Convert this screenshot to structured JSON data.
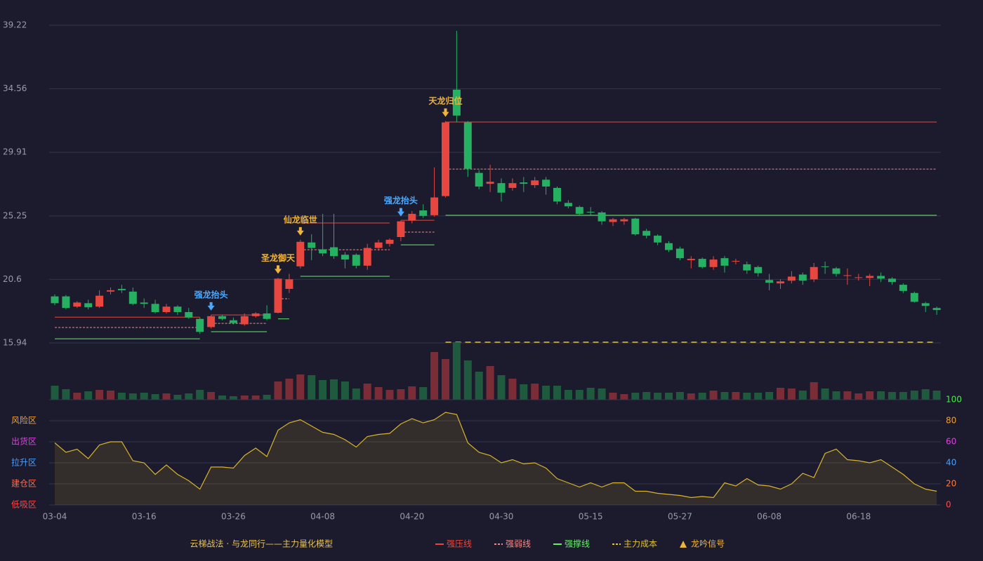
{
  "chart_data": [
    {
      "type": "candlestick",
      "up_color": "#e8473f",
      "down_color": "#26b062",
      "ylim": [
        15.94,
        39.22
      ],
      "yticks": [
        15.94,
        20.6,
        25.25,
        29.91,
        34.56,
        39.22
      ],
      "grid": true,
      "open": [
        19.35,
        19.35,
        18.6,
        18.85,
        18.6,
        19.7,
        19.9,
        19.7,
        18.9,
        18.8,
        18.2,
        18.6,
        18.2,
        17.7,
        17.1,
        17.9,
        17.6,
        17.3,
        17.9,
        18.1,
        18.15,
        19.9,
        21.55,
        23.3,
        22.8,
        22.95,
        22.4,
        22.4,
        21.6,
        22.9,
        23.2,
        23.7,
        24.9,
        25.65,
        25.3,
        26.7,
        34.5,
        32.1,
        28.4,
        27.6,
        27.65,
        27.3,
        27.7,
        27.5,
        27.9,
        27.3,
        26.2,
        25.9,
        25.55,
        25.5,
        24.8,
        24.85,
        25.05,
        24.15,
        23.8,
        23.25,
        22.85,
        22.0,
        22.1,
        21.5,
        22.15,
        21.9,
        21.7,
        21.5,
        20.55,
        20.3,
        20.5,
        20.95,
        20.6,
        21.55,
        21.4,
        20.85,
        20.7,
        20.7,
        20.85,
        20.65,
        20.2,
        19.6,
        18.85,
        18.5
      ],
      "high": [
        19.5,
        19.45,
        19.0,
        19.1,
        19.8,
        20.0,
        20.2,
        20.0,
        19.2,
        19.1,
        18.8,
        18.7,
        18.5,
        17.8,
        18.0,
        18.0,
        17.8,
        18.1,
        18.2,
        18.7,
        20.7,
        21.0,
        23.5,
        23.9,
        25.4,
        25.4,
        22.6,
        22.5,
        23.2,
        23.5,
        23.6,
        24.9,
        25.6,
        26.1,
        28.8,
        32.2,
        38.8,
        32.2,
        28.6,
        29.0,
        28.0,
        28.0,
        28.1,
        28.1,
        28.1,
        27.4,
        26.4,
        26.0,
        25.9,
        25.6,
        25.1,
        25.1,
        25.1,
        24.3,
        23.9,
        23.4,
        23.0,
        22.3,
        22.2,
        22.3,
        22.3,
        22.1,
        21.9,
        21.6,
        21.0,
        20.6,
        21.2,
        21.1,
        21.8,
        21.9,
        21.5,
        21.4,
        21.0,
        21.0,
        21.1,
        20.75,
        20.3,
        19.7,
        18.95,
        18.6
      ],
      "low": [
        18.7,
        18.4,
        18.5,
        18.4,
        18.5,
        19.5,
        19.6,
        18.7,
        18.5,
        18.1,
        18.1,
        18.0,
        17.7,
        16.6,
        17.0,
        17.6,
        17.3,
        17.2,
        17.8,
        17.6,
        18.1,
        19.6,
        21.4,
        22.0,
        22.3,
        22.1,
        21.4,
        21.4,
        21.3,
        22.7,
        23.0,
        23.4,
        24.7,
        25.1,
        25.2,
        26.6,
        32.1,
        28.1,
        27.2,
        27.0,
        26.3,
        27.1,
        27.0,
        27.3,
        26.8,
        26.1,
        25.8,
        25.3,
        25.3,
        24.6,
        24.5,
        24.6,
        23.8,
        23.6,
        23.1,
        22.6,
        22.0,
        21.4,
        21.4,
        21.3,
        21.1,
        21.7,
        21.0,
        20.8,
        19.8,
        19.9,
        20.3,
        20.2,
        20.4,
        21.0,
        20.8,
        20.2,
        20.5,
        20.1,
        20.4,
        20.2,
        19.6,
        18.9,
        18.2,
        18.0
      ],
      "close": [
        18.85,
        18.5,
        18.9,
        18.55,
        19.4,
        19.8,
        19.8,
        18.8,
        18.8,
        18.2,
        18.6,
        18.2,
        17.8,
        16.75,
        17.9,
        17.7,
        17.4,
        17.9,
        18.1,
        17.7,
        20.65,
        20.6,
        23.35,
        22.9,
        22.5,
        22.3,
        22.05,
        21.6,
        22.9,
        23.3,
        23.5,
        24.85,
        25.4,
        25.25,
        26.6,
        32.1,
        32.6,
        28.7,
        27.4,
        27.75,
        26.95,
        27.65,
        27.6,
        27.85,
        27.4,
        26.3,
        25.95,
        25.4,
        25.5,
        24.85,
        25.0,
        25.0,
        23.9,
        23.8,
        23.3,
        22.75,
        22.15,
        22.1,
        21.5,
        22.05,
        21.6,
        21.95,
        21.25,
        21.05,
        20.35,
        20.45,
        20.8,
        20.5,
        21.5,
        21.5,
        21.0,
        20.9,
        20.75,
        20.85,
        20.65,
        20.4,
        19.75,
        18.95,
        18.65,
        18.35
      ],
      "levels": [
        {
          "start": 0,
          "end": 13,
          "strong": 17.83,
          "weak": 17.07,
          "support": 16.24
        },
        {
          "start": 14,
          "end": 19,
          "strong": 17.99,
          "weak": 17.37,
          "support": 16.76
        },
        {
          "start": 20,
          "end": 21,
          "strong": null,
          "weak": 19.18,
          "support": 17.7
        },
        {
          "start": 22,
          "end": 30,
          "strong": 24.73,
          "weak": 22.77,
          "support": 20.82
        },
        {
          "start": 31,
          "end": 34,
          "strong": 24.93,
          "weak": 24.06,
          "support": 23.13
        },
        {
          "start": 35,
          "end": 79,
          "strong": 32.13,
          "weak": 28.68,
          "support": 25.29
        }
      ],
      "cost_line": {
        "start": 35,
        "end": 79,
        "value": 15.99
      },
      "signals": [
        {
          "index": 14,
          "label": "强龙抬头",
          "color": "#4aa8ff"
        },
        {
          "index": 20,
          "label": "圣龙御天",
          "color": "#f0b43a"
        },
        {
          "index": 22,
          "label": "仙龙临世",
          "color": "#f0b43a"
        },
        {
          "index": 31,
          "label": "强龙抬头",
          "color": "#4aa8ff"
        },
        {
          "index": 35,
          "label": "天龙归位",
          "color": "#f0b43a"
        }
      ]
    },
    {
      "type": "bar",
      "ylim": [
        0,
        82
      ],
      "up_color": "#7a2d36",
      "down_color": "#1f5a3f",
      "values": [
        20,
        15,
        10,
        12,
        14,
        13,
        10,
        9,
        10,
        8,
        9,
        7,
        9,
        14,
        11,
        6,
        5,
        6,
        6,
        7,
        26,
        30,
        36,
        35,
        28,
        29,
        26,
        16,
        23,
        18,
        14,
        15,
        19,
        18,
        68,
        58,
        82,
        56,
        40,
        48,
        35,
        30,
        22,
        23,
        20,
        20,
        14,
        14,
        17,
        16,
        10,
        8,
        10,
        11,
        10,
        10,
        11,
        9,
        10,
        13,
        11,
        11,
        10,
        10,
        11,
        17,
        16,
        13,
        25,
        16,
        12,
        12,
        9,
        12,
        12,
        11,
        11,
        13,
        15,
        13
      ]
    },
    {
      "type": "area",
      "color": "#d9b42a",
      "ylim": [
        0,
        100
      ],
      "yticks": [
        0,
        20,
        40,
        60,
        80,
        100
      ],
      "ytick_colors": [
        "#ff4a4a",
        "#ff7a3a",
        "#4a9eff",
        "#e040e0",
        "#f0a030",
        "#44ee44"
      ],
      "zones": [
        {
          "value": 80,
          "label": "风险区",
          "color": "#f0a030"
        },
        {
          "value": 60,
          "label": "出货区",
          "color": "#e040e0"
        },
        {
          "value": 40,
          "label": "拉升区",
          "color": "#4a9eff"
        },
        {
          "value": 20,
          "label": "建仓区",
          "color": "#ff6a4a"
        },
        {
          "value": 0,
          "label": "低吸区",
          "color": "#ff4444"
        }
      ],
      "categories": [
        "03-04",
        null,
        null,
        null,
        null,
        null,
        null,
        null,
        "03-16",
        null,
        null,
        null,
        null,
        null,
        null,
        null,
        "03-26",
        null,
        null,
        null,
        null,
        null,
        null,
        null,
        "04-08",
        null,
        null,
        null,
        null,
        null,
        null,
        null,
        "04-20",
        null,
        null,
        null,
        null,
        null,
        null,
        null,
        "04-30",
        null,
        null,
        null,
        null,
        null,
        null,
        null,
        "05-15",
        null,
        null,
        null,
        null,
        null,
        null,
        null,
        "05-27",
        null,
        null,
        null,
        null,
        null,
        null,
        null,
        "06-08",
        null,
        null,
        null,
        null,
        null,
        null,
        null,
        "06-18",
        null,
        null,
        null,
        null,
        null,
        null,
        null
      ],
      "values": [
        59,
        50,
        53,
        44,
        57,
        60,
        60,
        42,
        40,
        29,
        38,
        29,
        23,
        15,
        36,
        36,
        35,
        47,
        54,
        46,
        71,
        78,
        81,
        75,
        69,
        67,
        62,
        55,
        65,
        67,
        68,
        77,
        82,
        78,
        81,
        88,
        86,
        59,
        50,
        47,
        40,
        43,
        39,
        40,
        35,
        25,
        21,
        17,
        21,
        17,
        21,
        21,
        13,
        13,
        11,
        10,
        9,
        7,
        8,
        7,
        21,
        18,
        25,
        19,
        18,
        15,
        20,
        30,
        26,
        49,
        53,
        43,
        42,
        40,
        43,
        36,
        29,
        20,
        15,
        13
      ]
    }
  ],
  "footer": {
    "title": "云梯战法 · 与龙同行——主力量化模型",
    "legend": [
      {
        "name": "强压线",
        "color": "#e8473f",
        "style": "solid"
      },
      {
        "name": "强弱线",
        "color": "#f08a8a",
        "style": "dashed"
      },
      {
        "name": "强撑线",
        "color": "#66ee66",
        "style": "solid"
      },
      {
        "name": "主力成本",
        "color": "#e6c229",
        "style": "dashed"
      },
      {
        "name": "龙吟信号",
        "color": "#f0b43a",
        "style": "triangle"
      }
    ]
  }
}
